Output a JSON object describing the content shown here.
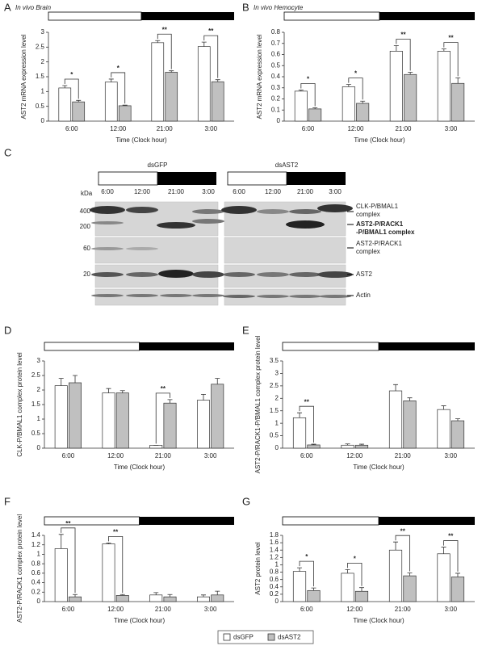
{
  "chart_data": [
    {
      "type": "bar",
      "panel": "A",
      "title": "In vivo Brain",
      "y_label": "AST2 mRNA expression level",
      "x_label": "Time (Clock hour)",
      "categories": [
        "6:00",
        "12:00",
        "21:00",
        "3:00"
      ],
      "series": [
        {
          "name": "dsGFP",
          "color": "#ffffff",
          "values": [
            1.12,
            1.32,
            2.65,
            2.52
          ],
          "errors": [
            0.08,
            0.1,
            0.07,
            0.15
          ]
        },
        {
          "name": "dsAST2",
          "color": "#c0c0c0",
          "values": [
            0.65,
            0.52,
            1.65,
            1.33
          ],
          "errors": [
            0.05,
            0.02,
            0.05,
            0.07
          ]
        }
      ],
      "significance": [
        "*",
        "*",
        "**",
        "**"
      ],
      "ylim": [
        0,
        3
      ],
      "yticks": [
        0,
        0.5,
        1,
        1.5,
        2,
        2.5,
        3
      ]
    },
    {
      "type": "bar",
      "panel": "B",
      "title": "In vivo Hemocyte",
      "y_label": "AST2 mRNA expression level",
      "x_label": "Time (Clock hour)",
      "categories": [
        "6:00",
        "12:00",
        "21:00",
        "3:00"
      ],
      "series": [
        {
          "name": "dsGFP",
          "color": "#ffffff",
          "values": [
            0.27,
            0.31,
            0.63,
            0.63
          ],
          "errors": [
            0.01,
            0.02,
            0.05,
            0.02
          ]
        },
        {
          "name": "dsAST2",
          "color": "#c0c0c0",
          "values": [
            0.11,
            0.16,
            0.42,
            0.34
          ],
          "errors": [
            0.01,
            0.02,
            0.02,
            0.05
          ]
        }
      ],
      "significance": [
        "*",
        "*",
        "**",
        "**"
      ],
      "ylim": [
        0,
        0.8
      ],
      "yticks": [
        0,
        0.1,
        0.2,
        0.3,
        0.4,
        0.5,
        0.6,
        0.7,
        0.8
      ]
    },
    {
      "type": "bar",
      "panel": "D",
      "y_label": "CLK-P/BMAL1 complex protein level",
      "x_label": "Time (Clock hour)",
      "categories": [
        "6:00",
        "12:00",
        "21:00",
        "3:00"
      ],
      "series": [
        {
          "name": "dsGFP",
          "color": "#ffffff",
          "values": [
            2.15,
            1.9,
            0.1,
            1.65
          ],
          "errors": [
            0.25,
            0.15,
            0,
            0.2
          ]
        },
        {
          "name": "dsAST2",
          "color": "#c0c0c0",
          "values": [
            2.25,
            1.9,
            1.55,
            2.2
          ],
          "errors": [
            0.25,
            0.08,
            0.12,
            0.2
          ]
        }
      ],
      "significance": [
        null,
        null,
        "**",
        null
      ],
      "ylim": [
        0,
        3
      ],
      "yticks": [
        0,
        0.5,
        1,
        1.5,
        2,
        2.5,
        3
      ]
    },
    {
      "type": "bar",
      "panel": "E",
      "y_label": "AST2-P/RACK1-P/BMAL1 complex protein level",
      "x_label": "Time (Clock hour)",
      "categories": [
        "6:00",
        "12:00",
        "21:00",
        "3:00"
      ],
      "series": [
        {
          "name": "dsGFP",
          "color": "#ffffff",
          "values": [
            1.22,
            0.12,
            2.3,
            1.55
          ],
          "errors": [
            0.2,
            0.05,
            0.25,
            0.15
          ]
        },
        {
          "name": "dsAST2",
          "color": "#c0c0c0",
          "values": [
            0.13,
            0.12,
            1.9,
            1.1
          ],
          "errors": [
            0.03,
            0.04,
            0.12,
            0.08
          ]
        }
      ],
      "significance": [
        "**",
        null,
        null,
        null
      ],
      "ylim": [
        0,
        3.5
      ],
      "yticks": [
        0,
        0.5,
        1,
        1.5,
        2,
        2.5,
        3,
        3.5
      ]
    },
    {
      "type": "bar",
      "panel": "F",
      "y_label": "AST2-P/RACK1 complex protein level",
      "x_label": "Time (Clock hour)",
      "categories": [
        "6:00",
        "12:00",
        "21:00",
        "3:00"
      ],
      "series": [
        {
          "name": "dsGFP",
          "color": "#ffffff",
          "values": [
            1.12,
            1.22,
            0.14,
            0.1
          ],
          "errors": [
            0.3,
            0.02,
            0.05,
            0.04
          ]
        },
        {
          "name": "dsAST2",
          "color": "#c0c0c0",
          "values": [
            0.1,
            0.13,
            0.1,
            0.14
          ],
          "errors": [
            0.05,
            0.02,
            0.05,
            0.08
          ]
        }
      ],
      "significance": [
        "**",
        "**",
        null,
        null
      ],
      "ylim": [
        0,
        1.4
      ],
      "yticks": [
        0,
        0.2,
        0.4,
        0.6,
        0.8,
        1,
        1.2,
        1.4
      ]
    },
    {
      "type": "bar",
      "panel": "G",
      "y_label": "AST2 protein level",
      "x_label": "Time (Clock hour)",
      "categories": [
        "6:00",
        "12:00",
        "21:00",
        "3:00"
      ],
      "series": [
        {
          "name": "dsGFP",
          "color": "#ffffff",
          "values": [
            0.82,
            0.77,
            1.4,
            1.3
          ],
          "errors": [
            0.1,
            0.1,
            0.22,
            0.18
          ]
        },
        {
          "name": "dsAST2",
          "color": "#c0c0c0",
          "values": [
            0.3,
            0.28,
            0.7,
            0.67
          ],
          "errors": [
            0.07,
            0.1,
            0.08,
            0.1
          ]
        }
      ],
      "significance": [
        "*",
        "*",
        "**",
        "**"
      ],
      "ylim": [
        0,
        1.8
      ],
      "yticks": [
        0,
        0.2,
        0.4,
        0.6,
        0.8,
        1,
        1.2,
        1.4,
        1.6,
        1.8
      ]
    }
  ],
  "blot": {
    "panel": "C",
    "groups": [
      "dsGFP",
      "dsAST2"
    ],
    "kda_label": "kDa",
    "markers": [
      "400",
      "200",
      "60",
      "20"
    ],
    "lanes": [
      "6:00",
      "12:00",
      "21:00",
      "3:00",
      "6:00",
      "12:00",
      "21:00",
      "3:00"
    ],
    "bands": [
      [
        "CLK-P/BMAL1",
        "complex"
      ],
      [
        "AST2-P/RACK1",
        "-P/BMAL1 complex"
      ],
      [
        "AST2-P/RACK1",
        "complex"
      ],
      [
        "AST2"
      ],
      [
        "Actin"
      ]
    ]
  }
}
